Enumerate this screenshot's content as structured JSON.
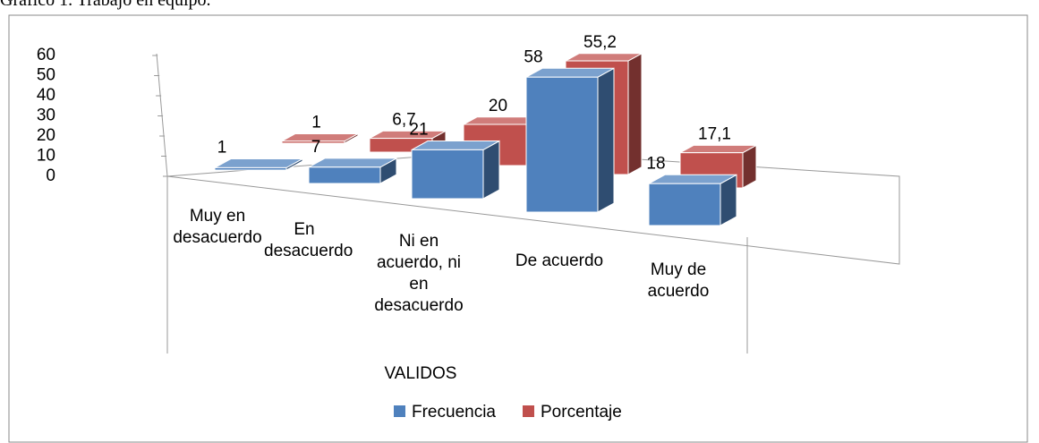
{
  "caption": "Gráfico 1. Trabajo en equipo.",
  "chart_data": {
    "type": "bar3d",
    "x_label": "VALIDOS",
    "categories": [
      "Muy en desacuerdo",
      "En desacuerdo",
      "Ni en acuerdo, ni en desacuerdo",
      "De acuerdo",
      "Muy de acuerdo"
    ],
    "series": [
      {
        "name": "Frecuencia",
        "color": "#4f81bd",
        "values": [
          1,
          7,
          21,
          58,
          18
        ]
      },
      {
        "name": "Porcentaje",
        "color": "#c0504d",
        "values": [
          1,
          6.7,
          20,
          55.2,
          17.1
        ],
        "value_labels": [
          "1",
          "6,7",
          "20",
          "55,2",
          "17,1"
        ]
      }
    ],
    "ylim": [
      0,
      60
    ],
    "yticks": [
      0,
      10,
      20,
      30,
      40,
      50,
      60
    ],
    "legend": "bottom"
  }
}
